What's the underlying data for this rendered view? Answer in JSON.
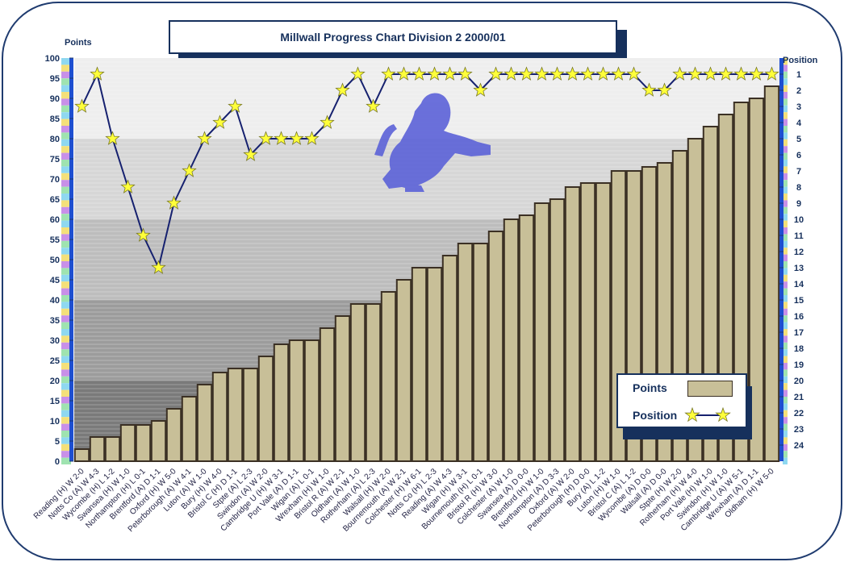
{
  "chart_data": {
    "type": "bar+line",
    "title": "Millwall Progress Chart Division 2 2000/01",
    "ylabel_left": "Points",
    "ylabel_right": "Position",
    "ylim_left": [
      0,
      100
    ],
    "left_ticks": [
      0,
      5,
      10,
      15,
      20,
      25,
      30,
      35,
      40,
      45,
      50,
      55,
      60,
      65,
      70,
      75,
      80,
      85,
      90,
      95,
      100
    ],
    "ylim_right": [
      1,
      24
    ],
    "right_ticks": [
      1,
      2,
      3,
      4,
      5,
      6,
      7,
      8,
      9,
      10,
      11,
      12,
      13,
      14,
      15,
      16,
      17,
      18,
      19,
      20,
      21,
      22,
      23,
      24
    ],
    "categories": [
      "Reading (H) W 2-0",
      "Notts Co (A) W 4-3",
      "Wycombe (H) L 1-2",
      "Swansea (H) W 1-0",
      "Northampton (H) L 0-1",
      "Brentford (A) D 1-1",
      "Oxford (H) W 5-0",
      "Peterborough (A) W 4-1",
      "Luton (A) W 1-0",
      "Bury (H) W 4-0",
      "Bristol C (H) D 1-1",
      "Stpte (A) L 2-3",
      "Swindon (A) W 2-0",
      "Cambridge U (H) W 3-1",
      "Port Vale (A) D 1-1",
      "Wigan (A) L 0-1",
      "Wrexham (H) W 1-0",
      "Bristol R (A) W 2-1",
      "Oldham (A) W 1-0",
      "Rotherham (A) L 2-3",
      "Walsall (H) W 2-0",
      "Bournemouth (A) W 2-1",
      "Colchester (H) W 6-1",
      "Notts Co (H) L 2-3",
      "Reading (A) W 4-3",
      "Wigan (H) W 3-1",
      "Bournemouth (H) L 0-1",
      "Bristol R (H) W 3-0",
      "Colchester (A) W 1-0",
      "Swansea (A) D 0-0",
      "Brentford (H) W 1-0",
      "Northampton (A) D 3-3",
      "Oxford (A) W 2-0",
      "Peterborough (H) D 0-0",
      "Bury (A) L 1-2",
      "Luton (H) W 1-0",
      "Bristol C (A) L 1-2",
      "Wycombe (A) D 0-0",
      "Walsall (A) D 0-0",
      "Stpte (H) W 2-0",
      "Rotherham (H) W 4-0",
      "Port Vale (H) W 1-0",
      "Swindon (H) W 1-0",
      "Cambridge U (A) W 5-1",
      "Wrexham (A) D 1-1",
      "Oldham (H) W 5-0"
    ],
    "series": [
      {
        "name": "Points",
        "type": "bar",
        "values": [
          3,
          6,
          6,
          9,
          9,
          10,
          13,
          16,
          19,
          22,
          23,
          23,
          26,
          29,
          30,
          30,
          33,
          36,
          39,
          39,
          42,
          45,
          48,
          48,
          51,
          54,
          54,
          57,
          60,
          61,
          64,
          65,
          68,
          69,
          69,
          72,
          72,
          73,
          74,
          77,
          80,
          83,
          86,
          89,
          90,
          93
        ]
      },
      {
        "name": "Position",
        "type": "line",
        "marker": "star",
        "values": [
          3,
          1,
          5,
          8,
          11,
          13,
          9,
          7,
          5,
          4,
          3,
          6,
          5,
          5,
          5,
          5,
          4,
          2,
          1,
          3,
          1,
          1,
          1,
          1,
          1,
          1,
          2,
          1,
          1,
          1,
          1,
          1,
          1,
          1,
          1,
          1,
          1,
          2,
          2,
          1,
          1,
          1,
          1,
          1,
          1,
          1
        ]
      }
    ],
    "legend": {
      "points_label": "Points",
      "position_label": "Position",
      "placement": "bottom-right"
    },
    "colors": {
      "bar_fill": "#c8bf98",
      "bar_stroke": "#3b3024",
      "line": "#16216f",
      "star_fill": "#ffff3a",
      "star_stroke": "#777722",
      "axis": "#1f3b6f",
      "label": "#16305c",
      "logo": "#5c62d8"
    },
    "logo": "millwall-lion-crest"
  }
}
